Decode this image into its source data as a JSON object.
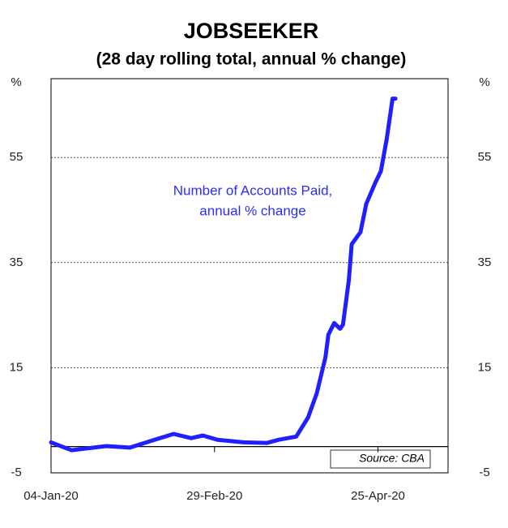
{
  "chart_data": {
    "type": "line",
    "title": "JOBSEEKER",
    "subtitle": "(28 day rolling total, annual % change)",
    "y_unit_left": "%",
    "y_unit_right": "%",
    "annotation": [
      "Number of Accounts Paid,",
      "annual % change"
    ],
    "source": "Source: CBA",
    "x": [
      "2020-01-04",
      "2020-01-11",
      "2020-01-23",
      "2020-01-31",
      "2020-02-08",
      "2020-02-15",
      "2020-02-21",
      "2020-02-25",
      "2020-03-01",
      "2020-03-10",
      "2020-03-18",
      "2020-03-22",
      "2020-03-28",
      "2020-04-01",
      "2020-04-04",
      "2020-04-07",
      "2020-04-08",
      "2020-04-10",
      "2020-04-12",
      "2020-04-13",
      "2020-04-15",
      "2020-04-16",
      "2020-04-19",
      "2020-04-21",
      "2020-04-24",
      "2020-04-26",
      "2020-04-28",
      "2020-04-30",
      "2020-05-01"
    ],
    "series": [
      {
        "name": "Number of Accounts Paid, annual % change",
        "color": "#1f1fff",
        "values": [
          0.8,
          -0.7,
          0.1,
          -0.2,
          1.2,
          2.4,
          1.6,
          2.1,
          1.3,
          0.8,
          0.7,
          1.3,
          1.9,
          5.5,
          10.1,
          17,
          21.3,
          23.5,
          22.4,
          23.2,
          31.6,
          38.5,
          40.8,
          46.2,
          50.1,
          52.4,
          58.5,
          66.2,
          66.2
        ]
      }
    ],
    "xlim": [
      "2020-01-04",
      "2020-05-19"
    ],
    "xticks": [
      {
        "value": "2020-01-04",
        "label": "04-Jan-20"
      },
      {
        "value": "2020-02-29",
        "label": "29-Feb-20"
      },
      {
        "value": "2020-04-25",
        "label": "25-Apr-20"
      }
    ],
    "ylim": [
      -5,
      70
    ],
    "yticks": [
      -5,
      15,
      35,
      55
    ],
    "grid": true
  }
}
